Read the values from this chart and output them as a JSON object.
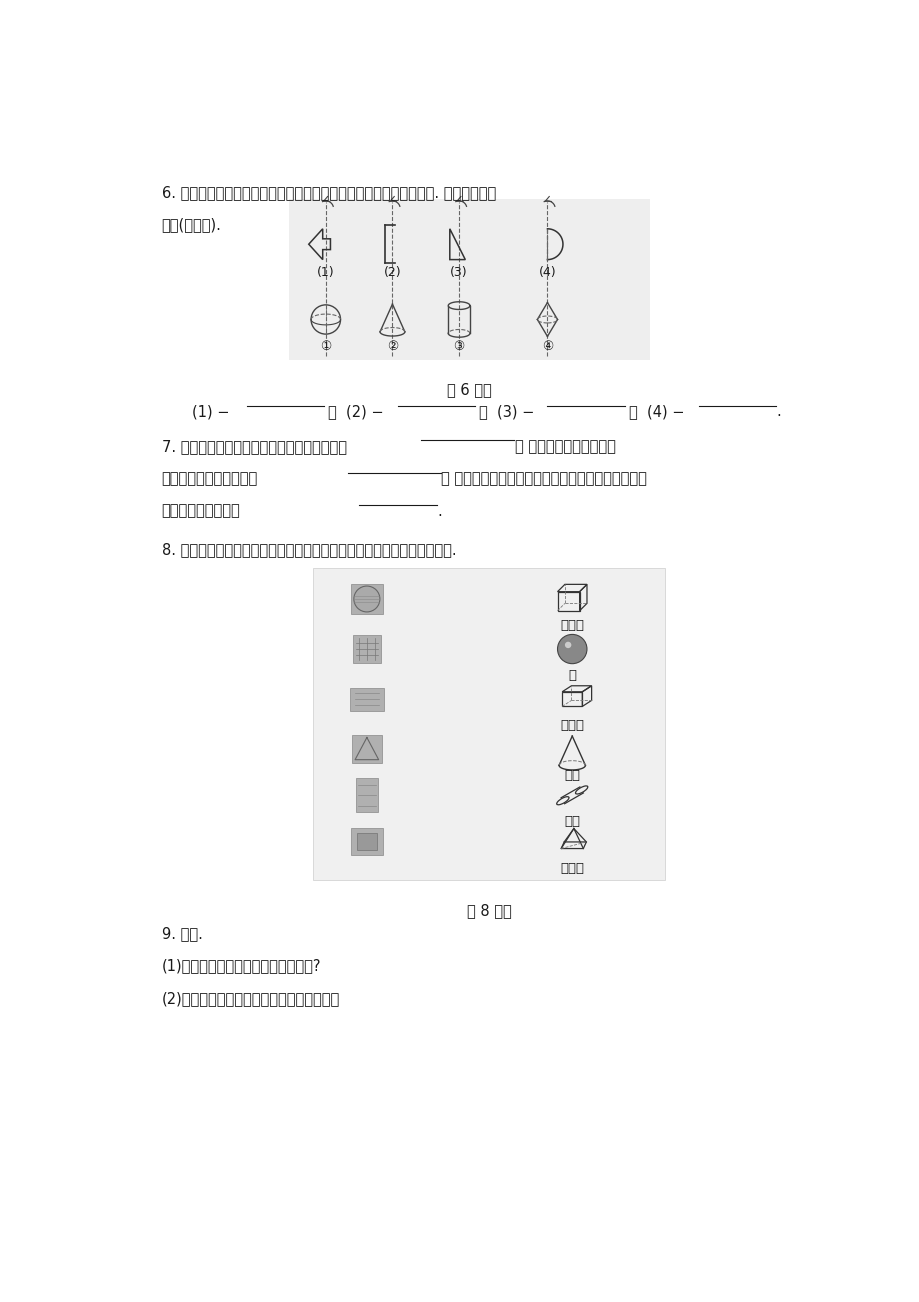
{
  "bg_color": "#ffffff",
  "page_width": 9.2,
  "page_height": 13.02,
  "text_color": "#1a1a1a",
  "q6_text1": "6. 如图所示，第一行的图形绕虚线旋转一周，得到第二行的某个图形. 请填出对应的",
  "q6_text2": "图形(填序号).",
  "q6_caption": "第 6 题图",
  "q7_text1": "7. 笔尖在纸上快速滑动写出一个汉字，这说明",
  "q7_blank1": "            ",
  "q7_mid1": "； 汽车的雨刷在挡风玻璃",
  "q7_text2": "上画出一个扇面，这说明",
  "q7_blank2": "            ",
  "q7_mid2": "； 直角三角形纸片绕它的一条直角边所在直线旋转形",
  "q7_text3": "成一个圆锥，这说明",
  "q7_blank3": "           ",
  "q7_end": ".",
  "q8_text": "8. 下图中实物的形状对应哪些立体图形？把相应的实物与图形用线连起来.",
  "q8_caption": "第 8 题图",
  "q9_text1": "9. 如图.",
  "q9_text2": "(1)这个图象是平面图形还是立体图形?",
  "q9_text3": "(2)它有多少个面？多少条棱？多少个顶点？",
  "shape_labels_top": [
    "(1)",
    "(2)",
    "(3)",
    "(4)"
  ],
  "shape_labels_bot": [
    "①",
    "②",
    "③",
    "④"
  ],
  "solid_labels": [
    "正方体",
    "球",
    "长方体",
    "圆锥",
    "圆柱",
    "四棱锥"
  ]
}
